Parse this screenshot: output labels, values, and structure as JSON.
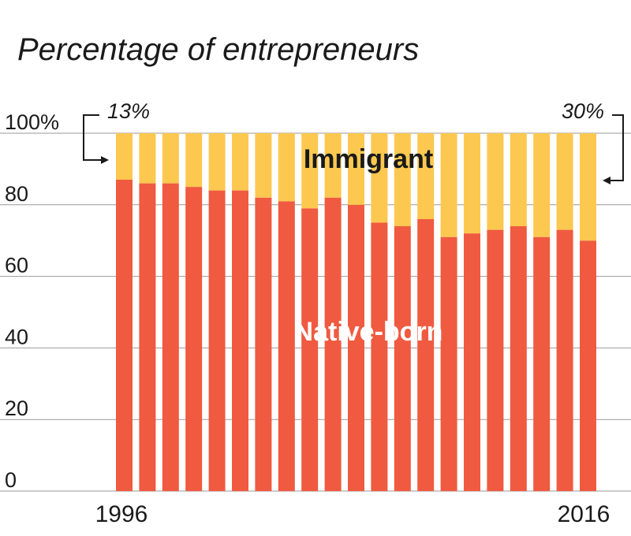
{
  "chart_data": {
    "type": "bar",
    "stacked": true,
    "title": "Percentage of entrepreneurs",
    "categories": [
      "1996",
      "1997",
      "1998",
      "1999",
      "2000",
      "2001",
      "2002",
      "2003",
      "2004",
      "2005",
      "2006",
      "2007",
      "2008",
      "2009",
      "2010",
      "2011",
      "2012",
      "2013",
      "2014",
      "2015",
      "2016"
    ],
    "x_tick_labels": [
      "1996",
      "2016"
    ],
    "y_ticks": [
      "100%",
      "80",
      "60",
      "40",
      "20",
      "0"
    ],
    "ylim": [
      0,
      100
    ],
    "grid": true,
    "series": [
      {
        "name": "Native-born",
        "color": "#f05a40",
        "values": [
          87,
          86,
          86,
          85,
          84,
          84,
          82,
          81,
          79,
          82,
          80,
          75,
          74,
          76,
          71,
          72,
          73,
          74,
          71,
          73,
          70
        ]
      },
      {
        "name": "Immigrant",
        "color": "#fcc84f",
        "values": [
          13,
          14,
          14,
          15,
          16,
          16,
          18,
          19,
          21,
          18,
          20,
          25,
          26,
          24,
          29,
          28,
          27,
          26,
          29,
          27,
          30
        ]
      }
    ],
    "annotations": [
      {
        "text": "13%",
        "points_to": "1996 Immigrant"
      },
      {
        "text": "30%",
        "points_to": "2016 Immigrant"
      }
    ]
  }
}
